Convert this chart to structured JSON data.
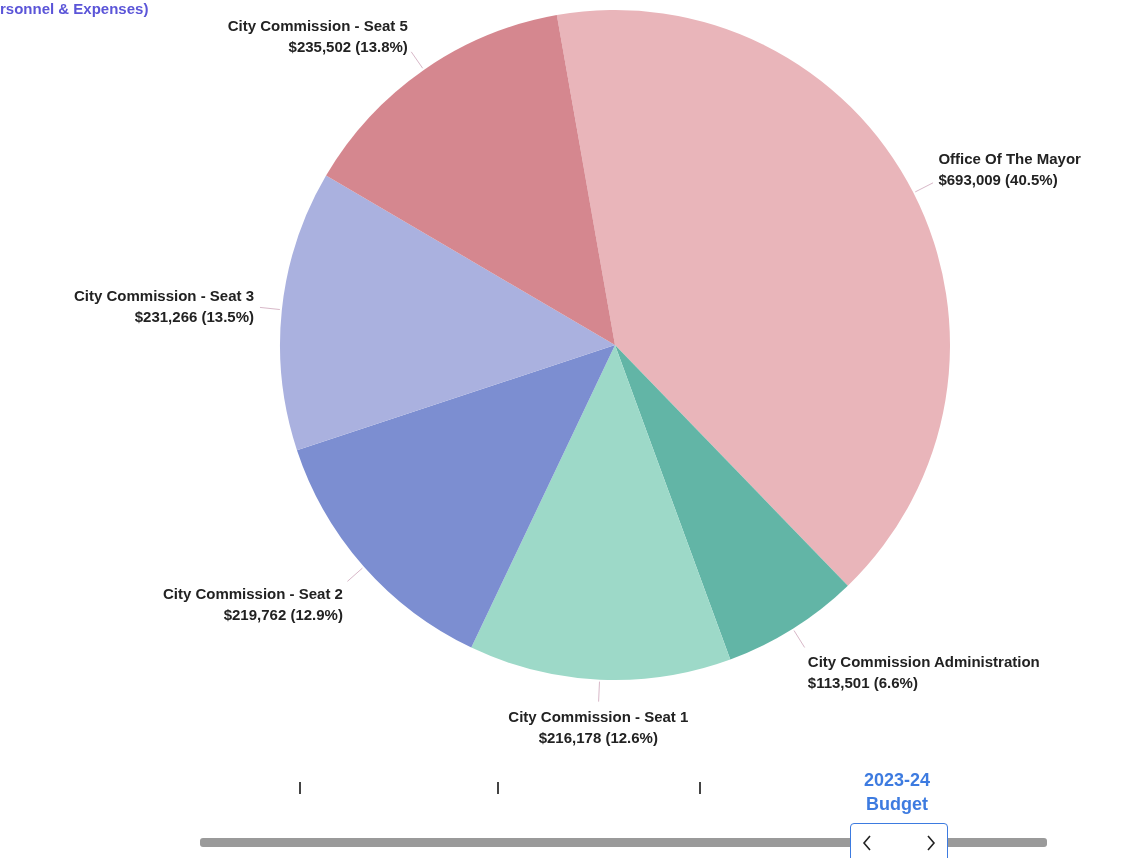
{
  "chart_data": {
    "type": "pie",
    "title": "rsonnel & Expenses)",
    "categories": [
      "Office Of The Mayor",
      "City Commission Administration",
      "City Commission - Seat 1",
      "City Commission - Seat 2",
      "City Commission - Seat 3",
      "City Commission - Seat 5"
    ],
    "values": [
      693009,
      113501,
      216178,
      219762,
      231266,
      235502
    ],
    "value_labels": [
      "$693,009 (40.5%)",
      "$113,501 (6.6%)",
      "$216,178 (12.6%)",
      "$219,762 (12.9%)",
      "$231,266 (13.5%)",
      "$235,502 (13.8%)"
    ],
    "colors": [
      "#e9b5ba",
      "#62b5a6",
      "#9dd9c8",
      "#7c8ed1",
      "#aab1df",
      "#d5878f"
    ],
    "annotations": [
      "2023-24 Budget"
    ],
    "legend": false
  }
}
